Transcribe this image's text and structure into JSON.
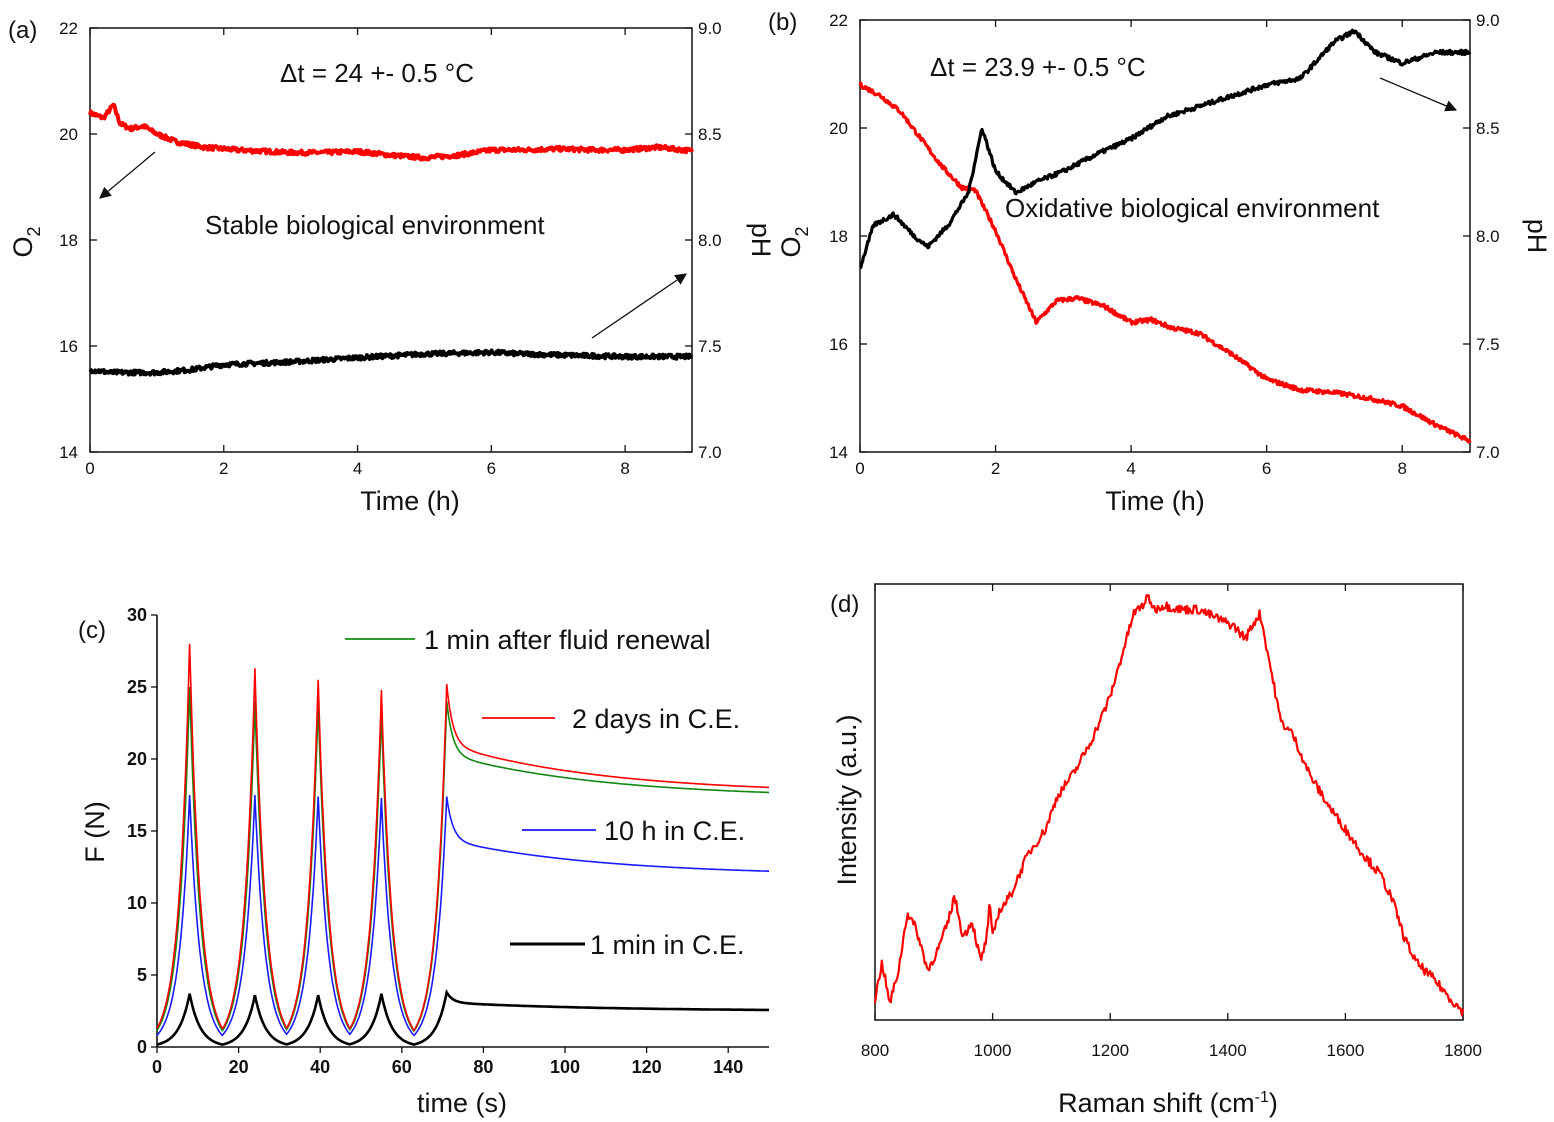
{
  "chart_data": [
    {
      "id": "a",
      "type": "line",
      "panel_label": "(a)",
      "xlabel": "Time (h)",
      "ylabel": "O",
      "ylabel_sub": "2",
      "y2label": "pH",
      "xlim": [
        0,
        9
      ],
      "ylim": [
        14,
        22
      ],
      "y2lim": [
        7.0,
        9.0
      ],
      "xticks": [
        "0",
        "2",
        "4",
        "6",
        "8"
      ],
      "yticks": [
        "14",
        "16",
        "18",
        "20",
        "22"
      ],
      "y2ticks": [
        "7.0",
        "7.5",
        "8.0",
        "8.5",
        "9.0"
      ],
      "annotations": [
        "Δt = 24  +- 0.5 °C",
        "Stable biological environment"
      ],
      "grid": false,
      "series": [
        {
          "axis": "left",
          "color": "#ff0000",
          "x": [
            0,
            0.2,
            0.35,
            0.45,
            0.6,
            0.8,
            1.0,
            1.3,
            1.7,
            2.2,
            3,
            3.5,
            4,
            4.5,
            5,
            5.5,
            6,
            6.5,
            7,
            7.5,
            8,
            8.5,
            9
          ],
          "y": [
            20.4,
            20.3,
            20.55,
            20.2,
            20.1,
            20.15,
            20.0,
            19.85,
            19.75,
            19.7,
            19.65,
            19.65,
            19.67,
            19.6,
            19.55,
            19.6,
            19.7,
            19.7,
            19.72,
            19.7,
            19.7,
            19.75,
            19.68
          ]
        },
        {
          "axis": "left",
          "color": "#000000",
          "x": [
            0,
            0.3,
            1,
            1.5,
            2,
            3,
            4,
            5,
            6,
            6.5,
            7,
            8,
            9
          ],
          "y": [
            15.55,
            15.5,
            15.5,
            15.55,
            15.65,
            15.7,
            15.78,
            15.85,
            15.88,
            15.85,
            15.83,
            15.8,
            15.8
          ]
        }
      ]
    },
    {
      "id": "b",
      "type": "line",
      "panel_label": "(b)",
      "xlabel": "Time (h)",
      "ylabel": "O",
      "ylabel_sub": "2",
      "y2label": "pH",
      "xlim": [
        0,
        9
      ],
      "ylim": [
        14,
        22
      ],
      "y2lim": [
        7.0,
        9.0
      ],
      "xticks": [
        "0",
        "2",
        "4",
        "6",
        "8"
      ],
      "yticks": [
        "14",
        "16",
        "18",
        "20",
        "22"
      ],
      "y2ticks": [
        "7.0",
        "7.5",
        "8.0",
        "8.5",
        "9.0"
      ],
      "annotations": [
        "Δt = 23.9  +- 0.5 °C",
        "Oxidative biological environment"
      ],
      "grid": false,
      "series": [
        {
          "axis": "left",
          "color": "#ff0000",
          "x": [
            0,
            0.3,
            0.6,
            0.9,
            1.2,
            1.5,
            1.7,
            2.0,
            2.3,
            2.6,
            2.9,
            3.2,
            3.6,
            4.0,
            4.3,
            4.6,
            5.0,
            5.5,
            6.0,
            6.5,
            7.0,
            7.5,
            8.0,
            8.5,
            9.0
          ],
          "y": [
            20.8,
            20.6,
            20.3,
            19.8,
            19.3,
            18.9,
            18.85,
            18.1,
            17.2,
            16.4,
            16.8,
            16.85,
            16.7,
            16.4,
            16.45,
            16.3,
            16.2,
            15.8,
            15.35,
            15.15,
            15.1,
            15.0,
            14.85,
            14.5,
            14.2
          ]
        },
        {
          "axis": "right",
          "color": "#000000",
          "x": [
            0,
            0.2,
            0.5,
            0.8,
            1.0,
            1.3,
            1.6,
            1.8,
            2.0,
            2.3,
            2.6,
            3,
            3.5,
            4,
            4.5,
            5,
            5.5,
            6,
            6.5,
            7,
            7.3,
            7.6,
            8,
            8.5,
            9
          ],
          "y": [
            7.85,
            8.05,
            8.1,
            8.0,
            7.95,
            8.05,
            8.2,
            8.5,
            8.3,
            8.2,
            8.25,
            8.3,
            8.38,
            8.45,
            8.55,
            8.6,
            8.65,
            8.7,
            8.73,
            8.9,
            8.95,
            8.85,
            8.8,
            8.85,
            8.85
          ]
        }
      ]
    },
    {
      "id": "c",
      "type": "line",
      "panel_label": "(c)",
      "xlabel": "time (s)",
      "ylabel": "F (N)",
      "xlim": [
        0,
        150
      ],
      "ylim": [
        0,
        30
      ],
      "xticks": [
        "0",
        "20",
        "40",
        "60",
        "80",
        "100",
        "120",
        "140"
      ],
      "yticks": [
        "0",
        "5",
        "10",
        "15",
        "20",
        "25",
        "30"
      ],
      "grid": false,
      "legend_placement": "inside, right",
      "peaks_t": [
        8,
        24,
        39.5,
        55,
        71
      ],
      "series": [
        {
          "name": "1 min after fluid renewal",
          "color": "#118811",
          "peak": [
            25,
            24,
            23.8,
            23.2,
            24
          ],
          "tail_end": 17.3
        },
        {
          "name": "2 days in C.E.",
          "color": "#ff0000",
          "peak": [
            28,
            26.3,
            25.5,
            24.8,
            25.2
          ],
          "tail_end": 17.6
        },
        {
          "name": "10 h in C.E.",
          "color": "#1a1aff",
          "peak": [
            17.5,
            17.5,
            17.4,
            17.3,
            17.4
          ],
          "tail_end": 11.9
        },
        {
          "name": "1 min in C.E.",
          "color": "#000000",
          "peak": [
            3.7,
            3.6,
            3.6,
            3.7,
            3.8
          ],
          "tail_end": 2.5
        }
      ]
    },
    {
      "id": "d",
      "type": "line",
      "panel_label": "(d)",
      "xlabel": "Raman shift (cm",
      "xlabel_sup": "-1",
      "xlabel_end": ")",
      "ylabel": "Intensity (a.u.)",
      "xlim": [
        800,
        1800
      ],
      "ylim": [
        0,
        100
      ],
      "xticks": [
        "800",
        "1000",
        "1200",
        "1400",
        "1600",
        "1800"
      ],
      "grid": false,
      "series": [
        {
          "color": "#ff0000",
          "x": [
            800,
            812,
            825,
            840,
            855,
            870,
            890,
            910,
            925,
            935,
            950,
            965,
            980,
            990,
            995,
            1000,
            1010,
            1030,
            1060,
            1090,
            1110,
            1140,
            1170,
            1200,
            1220,
            1240,
            1255,
            1265,
            1275,
            1290,
            1320,
            1350,
            1380,
            1410,
            1430,
            1445,
            1455,
            1470,
            1490,
            1510,
            1540,
            1570,
            1600,
            1630,
            1660,
            1680,
            1700,
            1720,
            1750,
            1780,
            1800
          ],
          "y": [
            3,
            12,
            2,
            10,
            24,
            20,
            10,
            16,
            22,
            28,
            18,
            22,
            12,
            18,
            26,
            18,
            24,
            28,
            38,
            44,
            52,
            58,
            66,
            76,
            86,
            96,
            98,
            100,
            97,
            98,
            97,
            97,
            95,
            93,
            90,
            94,
            96,
            85,
            70,
            67,
            57,
            50,
            44,
            38,
            33,
            27,
            18,
            12,
            8,
            3,
            0
          ]
        }
      ]
    }
  ]
}
